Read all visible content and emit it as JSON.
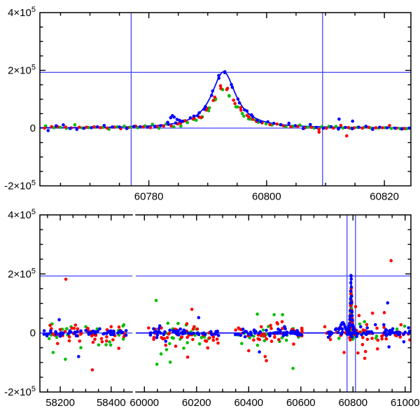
{
  "figure": {
    "background": "#ffffff",
    "axis_color": "#000000",
    "ref_line_color": "#4444ff",
    "curve_color": "#0000ff",
    "series_colors": {
      "red": "#ff0000",
      "green": "#00bf00",
      "blue": "#0000ff"
    }
  },
  "chart_data": [
    {
      "type": "scatter",
      "id": "top-panel",
      "title": "",
      "xlabel": "",
      "ylabel": "",
      "y_range": [
        -200000,
        400000
      ],
      "segments": [
        {
          "x_range": [
            60761.5,
            60824.5
          ],
          "curve": true
        }
      ],
      "x_ticks": {
        "minor": 5,
        "major": 20,
        "labels": [
          {
            "v": 60780,
            "t": "60780"
          },
          {
            "v": 60800,
            "t": "60800"
          },
          {
            "v": 60820,
            "t": "60820"
          }
        ]
      },
      "y_ticks": {
        "minor": 50000,
        "major": 200000,
        "labels": [
          {
            "v": 400000,
            "m": "4×10",
            "s": "5"
          },
          {
            "v": 200000,
            "m": "2×10",
            "s": "5"
          },
          {
            "v": 0,
            "m": "0",
            "s": ""
          },
          {
            "v": -200000,
            "m": "-2×10",
            "s": "5"
          }
        ]
      },
      "h_lines": [
        0,
        193000
      ],
      "v_lines": [
        60777,
        60809.5
      ],
      "model": {
        "shape": "lorentzian",
        "t0": 60792.7,
        "amp": 195000,
        "width": 2.5
      },
      "lightcurves": [
        {
          "x_start": 60762,
          "x_end": 60824.3,
          "dt": 1.2,
          "sigma": 3500,
          "series": [
            {
              "name": "red",
              "scale": 0.75,
              "offset": 0.15
            },
            {
              "name": "green",
              "scale": 0.67,
              "offset": 0.55
            },
            {
              "name": "blue",
              "scale": 1.0,
              "offset": 0.95
            }
          ]
        },
        {
          "x_start": 60787.5,
          "x_end": 60798.5,
          "dt": 1.1,
          "sigma": 3200,
          "series": [
            {
              "name": "red",
              "scale": 0.75,
              "offset": 0.3
            },
            {
              "name": "green",
              "scale": 0.67,
              "offset": 0.6
            },
            {
              "name": "blue",
              "scale": 1.0,
              "offset": 0.0
            }
          ]
        }
      ],
      "clusters": [],
      "points": [
        [
          "blue",
          60783.2,
          20000
        ],
        [
          "blue",
          60783.7,
          36000
        ],
        [
          "blue",
          60784.0,
          43000
        ],
        [
          "blue",
          60784.3,
          38000
        ],
        [
          "blue",
          60784.8,
          30000
        ],
        [
          "blue",
          60785.2,
          27000
        ],
        [
          "blue",
          60785.6,
          23000
        ],
        [
          "green",
          60785.9,
          24000
        ],
        [
          "red",
          60785.4,
          17000
        ],
        [
          "blue",
          60812.3,
          31000
        ],
        [
          "blue",
          60814.6,
          24000
        ],
        [
          "red",
          60813.6,
          -27000
        ],
        [
          "red",
          60808.9,
          -14000
        ]
      ]
    },
    {
      "type": "scatter",
      "id": "bottom-panel",
      "title": "",
      "xlabel": "",
      "ylabel": "",
      "y_range": [
        -200000,
        400000
      ],
      "segments": [
        {
          "x_range": [
            58120,
            58483
          ],
          "curve": false
        },
        {
          "x_range": [
            59967,
            61022
          ],
          "curve": true
        }
      ],
      "x_ticks": {
        "minor": 50,
        "major": 200,
        "labels": [
          {
            "v": 58200,
            "t": "58200"
          },
          {
            "v": 58400,
            "t": "58400"
          },
          {
            "v": 60000,
            "t": "60000"
          },
          {
            "v": 60200,
            "t": "60200"
          },
          {
            "v": 60400,
            "t": "60400"
          },
          {
            "v": 60600,
            "t": "60600"
          },
          {
            "v": 60800,
            "t": "60800"
          },
          {
            "v": 61000,
            "t": "61000"
          }
        ]
      },
      "y_ticks": {
        "minor": 50000,
        "major": 200000,
        "labels": [
          {
            "v": 400000,
            "m": "4×10",
            "s": "5"
          },
          {
            "v": 200000,
            "m": "2×10",
            "s": "5"
          },
          {
            "v": 0,
            "m": "0",
            "s": ""
          },
          {
            "v": -200000,
            "m": "-2×10",
            "s": "5"
          }
        ]
      },
      "h_lines": [
        0,
        193000
      ],
      "v_lines": [
        60777,
        60809.5
      ],
      "model": {
        "shape": "lorentzian",
        "t0": 60792.7,
        "amp": 195000,
        "width": 2.5
      },
      "lightcurves": [
        {
          "x_start": 60778,
          "x_end": 60809,
          "dt": 0.55,
          "sigma": 4200,
          "series": [
            {
              "name": "red",
              "scale": 0.75,
              "offset": 0.1
            },
            {
              "name": "green",
              "scale": 0.67,
              "offset": 0.3
            },
            {
              "name": "blue",
              "scale": 1.0,
              "offset": 0.0
            }
          ]
        }
      ],
      "clusters": [
        {
          "series": "blue",
          "x": [
            58135,
            58460
          ],
          "n": 60,
          "sigma": 5000,
          "bias": 0
        },
        {
          "series": "red",
          "x": [
            58135,
            58460
          ],
          "n": 45,
          "sigma": 16000,
          "bias": -3000
        },
        {
          "series": "green",
          "x": [
            58140,
            58450
          ],
          "n": 24,
          "sigma": 21000,
          "bias": -6000
        },
        {
          "series": "blue",
          "x": [
            60015,
            60285
          ],
          "n": 55,
          "sigma": 6000,
          "bias": 0
        },
        {
          "series": "red",
          "x": [
            60015,
            60285
          ],
          "n": 40,
          "sigma": 18000,
          "bias": -3000
        },
        {
          "series": "green",
          "x": [
            60020,
            60280
          ],
          "n": 22,
          "sigma": 22000,
          "bias": -6000
        },
        {
          "series": "blue",
          "x": [
            60340,
            60607
          ],
          "n": 55,
          "sigma": 6000,
          "bias": 0
        },
        {
          "series": "red",
          "x": [
            60340,
            60607
          ],
          "n": 38,
          "sigma": 18000,
          "bias": -3000
        },
        {
          "series": "green",
          "x": [
            60345,
            60600
          ],
          "n": 20,
          "sigma": 22000,
          "bias": -6000
        },
        {
          "series": "blue",
          "x": [
            60687,
            61020
          ],
          "n": 60,
          "sigma": 6500,
          "bias": 0
        },
        {
          "series": "red",
          "x": [
            60687,
            61020
          ],
          "n": 45,
          "sigma": 15000,
          "bias": -3000
        },
        {
          "series": "green",
          "x": [
            60700,
            61010
          ],
          "n": 14,
          "sigma": 13000,
          "bias": -2000
        }
      ],
      "points": [
        [
          "red",
          58222,
          182000
        ],
        [
          "blue",
          58196,
          45000
        ],
        [
          "green",
          58172,
          -66000
        ],
        [
          "green",
          58220,
          -89000
        ],
        [
          "blue",
          58272,
          -80000
        ],
        [
          "red",
          58326,
          -125000
        ],
        [
          "red",
          58430,
          -52000
        ],
        [
          "green",
          58380,
          -40000
        ],
        [
          "green",
          60045,
          110000
        ],
        [
          "green",
          60048,
          -106000
        ],
        [
          "green",
          60099,
          -99000
        ],
        [
          "green",
          60064,
          -71000
        ],
        [
          "red",
          60182,
          80000
        ],
        [
          "blue",
          60208,
          52000
        ],
        [
          "red",
          60163,
          31000
        ],
        [
          "red",
          60166,
          -82000
        ],
        [
          "green",
          60090,
          33000
        ],
        [
          "blue",
          60082,
          -28000
        ],
        [
          "red",
          60238,
          -28000
        ],
        [
          "red",
          60120,
          -45000
        ],
        [
          "green",
          60433,
          64000
        ],
        [
          "red",
          60511,
          31000
        ],
        [
          "blue",
          60441,
          -64000
        ],
        [
          "red",
          60463,
          -80000
        ],
        [
          "red",
          60468,
          -94000
        ],
        [
          "green",
          60570,
          -120000
        ],
        [
          "red",
          60528,
          38000
        ],
        [
          "red",
          60400,
          -60000
        ],
        [
          "blue",
          60746,
          12000
        ],
        [
          "blue",
          60750,
          19000
        ],
        [
          "blue",
          60754,
          27000
        ],
        [
          "blue",
          60758,
          34000
        ],
        [
          "blue",
          60762,
          35000
        ],
        [
          "blue",
          60766,
          29000
        ],
        [
          "blue",
          60769,
          21000
        ],
        [
          "blue",
          60772,
          14000
        ],
        [
          "red",
          60946,
          245000
        ],
        [
          "blue",
          60933,
          102000
        ],
        [
          "red",
          60920,
          69000
        ],
        [
          "red",
          60875,
          67000
        ],
        [
          "blue",
          60886,
          28000
        ],
        [
          "blue",
          60918,
          28000
        ],
        [
          "red",
          60810,
          89000
        ],
        [
          "red",
          60823,
          59000
        ],
        [
          "green",
          60844,
          38000
        ],
        [
          "blue",
          60938,
          -47000
        ],
        [
          "red",
          60894,
          -54000
        ],
        [
          "red",
          60848,
          -63000
        ],
        [
          "red",
          60845,
          -86000
        ],
        [
          "red",
          60766,
          -66000
        ],
        [
          "red",
          60819,
          -68000
        ],
        [
          "red",
          60787,
          -16000
        ],
        [
          "blue",
          60995,
          -30000
        ],
        [
          "red",
          60984,
          28000
        ]
      ]
    }
  ]
}
